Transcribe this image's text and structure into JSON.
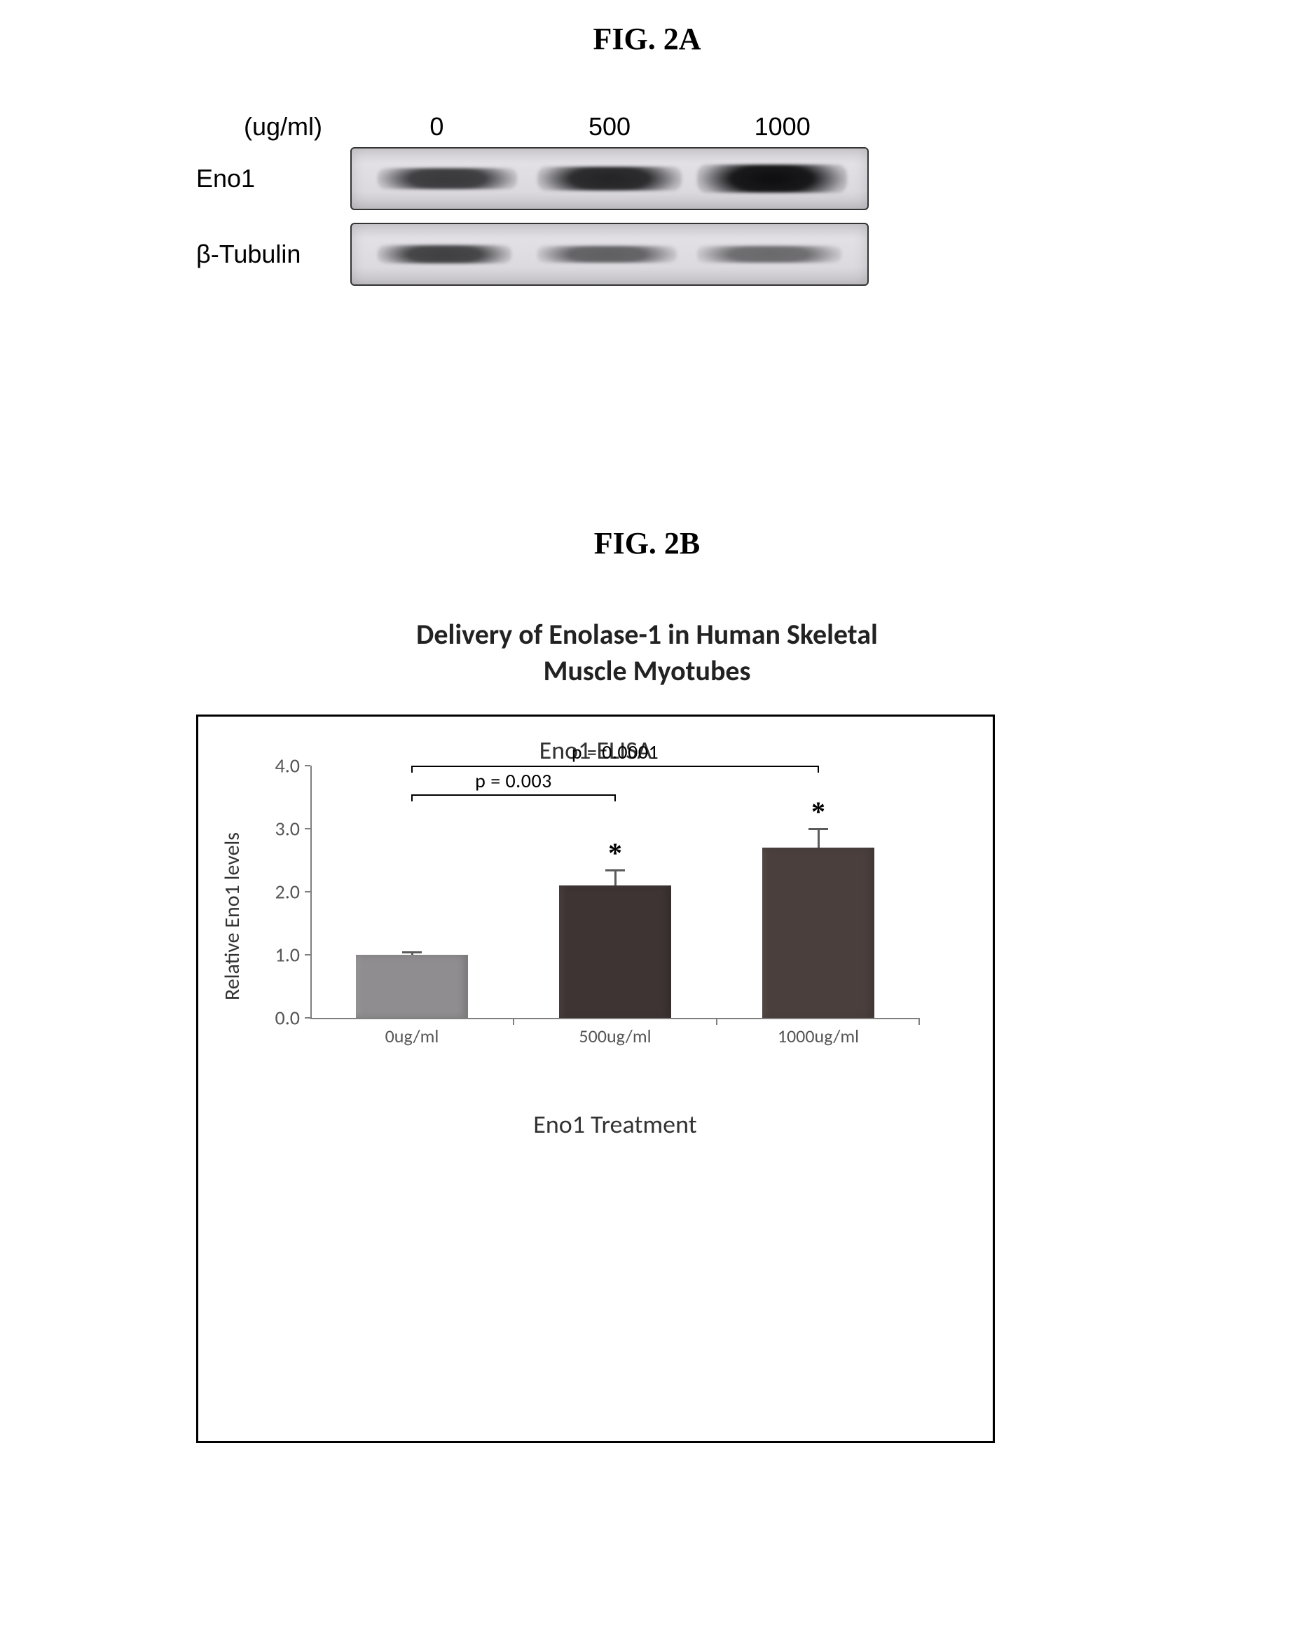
{
  "fig2a": {
    "title": "FIG. 2A",
    "unit_label": "(ug/ml)",
    "doses": [
      "0",
      "500",
      "1000"
    ],
    "rows": [
      {
        "label": "Eno1",
        "bands": [
          {
            "left_pct": 5,
            "width_pct": 27,
            "intensity": 0.78,
            "thickness": 30
          },
          {
            "left_pct": 36,
            "width_pct": 28,
            "intensity": 0.88,
            "thickness": 34
          },
          {
            "left_pct": 67,
            "width_pct": 29,
            "intensity": 0.98,
            "thickness": 40
          }
        ]
      },
      {
        "label": "β-Tubulin",
        "bands": [
          {
            "left_pct": 5,
            "width_pct": 26,
            "intensity": 0.75,
            "thickness": 26
          },
          {
            "left_pct": 36,
            "width_pct": 27,
            "intensity": 0.6,
            "thickness": 24
          },
          {
            "left_pct": 67,
            "width_pct": 28,
            "intensity": 0.55,
            "thickness": 24
          }
        ]
      }
    ]
  },
  "fig2b": {
    "title": "FIG. 2B",
    "caption_line1": "Delivery of Enolase-1 in Human Skeletal",
    "caption_line2": "Muscle Myotubes",
    "chart": {
      "type": "bar",
      "inner_title": "Eno1 ELISA",
      "ylabel": "Relative Eno1 levels",
      "xlabel": "Eno1 Treatment",
      "ylim": [
        0,
        4.0
      ],
      "yticks": [
        0.0,
        1.0,
        2.0,
        3.0,
        4.0
      ],
      "ytick_labels": [
        "0.0",
        "1.0",
        "2.0",
        "3.0",
        "4.0"
      ],
      "categories": [
        "0ug/ml",
        "500ug/ml",
        "1000ug/ml"
      ],
      "values": [
        1.0,
        2.1,
        2.7
      ],
      "errors": [
        0.05,
        0.25,
        0.3
      ],
      "sig_stars": [
        false,
        true,
        true
      ],
      "bar_colors": [
        "#8f8d8f",
        "#3d3433",
        "#4a3f3d"
      ],
      "bar_width": 0.55,
      "axis_color": "#7f7f7f",
      "background_color": "#ffffff",
      "grid_color": "#ffffff",
      "label_fontsize": 30,
      "tick_fontsize": 28,
      "title_fontsize": 36,
      "significance": [
        {
          "from": 0,
          "to": 1,
          "label": "p = 0.003",
          "y": 3.55
        },
        {
          "from": 0,
          "to": 2,
          "label": "p = 0.0001",
          "y": 4.0
        }
      ]
    }
  }
}
